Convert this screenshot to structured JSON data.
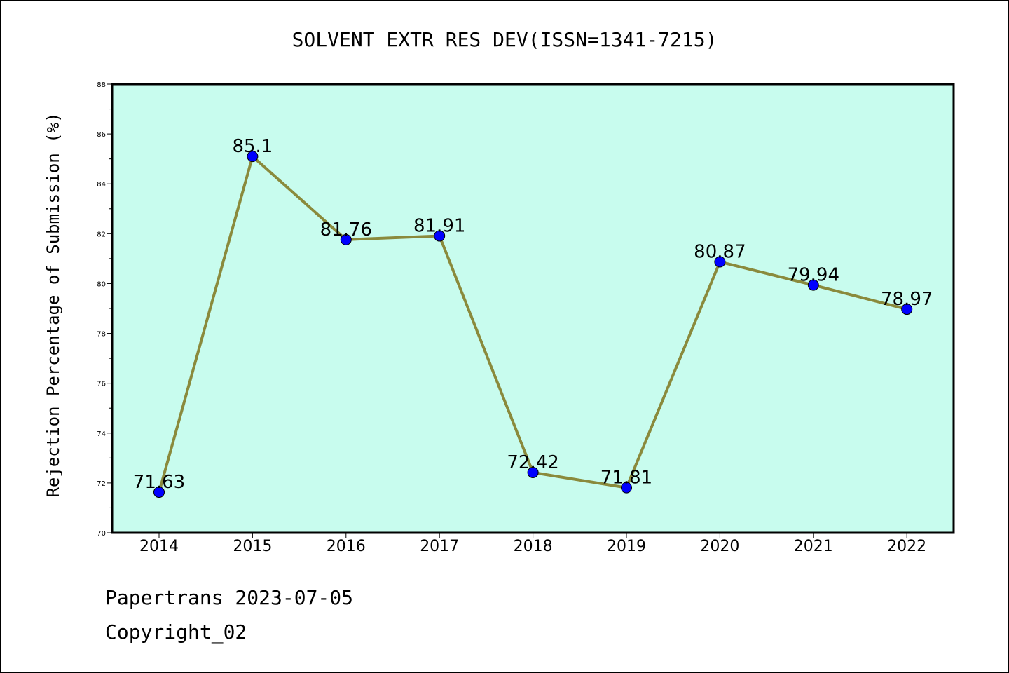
{
  "chart_data": {
    "type": "line",
    "title": "SOLVENT EXTR RES DEV(ISSN=1341-7215)",
    "xlabel": "",
    "ylabel": "Rejection Percentage of Submission (%)",
    "categories": [
      "2014",
      "2015",
      "2016",
      "2017",
      "2018",
      "2019",
      "2020",
      "2021",
      "2022"
    ],
    "series": [
      {
        "values": [
          71.63,
          85.1,
          81.76,
          81.91,
          72.42,
          71.81,
          80.87,
          79.94,
          78.97
        ],
        "labels": [
          "71.63",
          "85.1",
          "81.76",
          "81.91",
          "72.42",
          "71.81",
          "80.87",
          "79.94",
          "78.97"
        ]
      }
    ],
    "ylim": [
      70,
      88
    ],
    "yticks": [
      70,
      72,
      74,
      76,
      78,
      80,
      82,
      84,
      86,
      88
    ],
    "grid": false,
    "colors": {
      "plot_background": "#c8fcee",
      "line": "#8a8a3c",
      "marker": "#0000ff"
    }
  },
  "footer": {
    "line1": "Papertrans 2023-07-05",
    "line2": "Copyright_02"
  }
}
